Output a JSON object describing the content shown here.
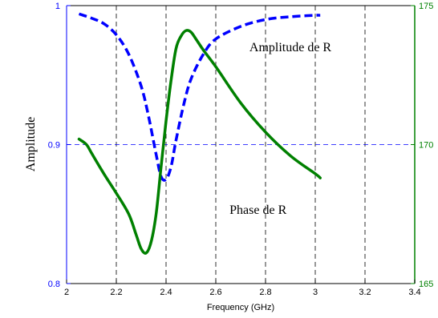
{
  "chart_data": {
    "type": "line",
    "xlabel": "Frequency (GHz)",
    "ylabel": "Amplitude",
    "xlim": [
      2,
      3.4
    ],
    "ylim_left": [
      0.8,
      1
    ],
    "ylim_right": [
      165,
      175
    ],
    "x_ticks": [
      "2",
      "2.2",
      "2.4",
      "2.6",
      "2.8",
      "3",
      "3.2",
      "3.4"
    ],
    "y_ticks_left": [
      "0.8",
      "0.9",
      "1"
    ],
    "y_ticks_right": [
      "165",
      "170",
      "175"
    ],
    "grid": "vertical dashed at x ticks; horizontal dashed at 0.9",
    "colors": {
      "amplitude": "#0000ff",
      "phase": "#008000",
      "grid": "#000000",
      "hline": "#0000ff"
    },
    "series": [
      {
        "name": "Amplitude de R",
        "axis": "left",
        "style": "dashed",
        "x": [
          2.05,
          2.1,
          2.15,
          2.2,
          2.25,
          2.3,
          2.33,
          2.36,
          2.38,
          2.4,
          2.42,
          2.44,
          2.47,
          2.5,
          2.55,
          2.6,
          2.7,
          2.8,
          2.9,
          3.0,
          3.02
        ],
        "y": [
          0.994,
          0.991,
          0.987,
          0.979,
          0.965,
          0.942,
          0.92,
          0.893,
          0.877,
          0.875,
          0.884,
          0.903,
          0.928,
          0.947,
          0.965,
          0.976,
          0.985,
          0.99,
          0.992,
          0.993,
          0.993
        ]
      },
      {
        "name": "Phase de R",
        "axis": "right",
        "style": "solid",
        "x": [
          2.05,
          2.08,
          2.1,
          2.15,
          2.2,
          2.25,
          2.28,
          2.3,
          2.32,
          2.34,
          2.36,
          2.38,
          2.4,
          2.42,
          2.44,
          2.46,
          2.48,
          2.5,
          2.52,
          2.55,
          2.6,
          2.7,
          2.8,
          2.9,
          3.0,
          3.02
        ],
        "y": [
          170.2,
          170.0,
          169.7,
          168.95,
          168.25,
          167.5,
          166.75,
          166.25,
          166.1,
          166.5,
          167.5,
          169.2,
          170.85,
          172.3,
          173.45,
          173.9,
          174.1,
          174.05,
          173.8,
          173.4,
          172.8,
          171.5,
          170.45,
          169.6,
          168.95,
          168.8
        ]
      }
    ],
    "annotations": [
      {
        "text": "Amplitude de R",
        "x": 2.9,
        "y_left": 0.97
      },
      {
        "text": "Phase de R",
        "x": 2.77,
        "y_left": 0.853
      }
    ]
  }
}
